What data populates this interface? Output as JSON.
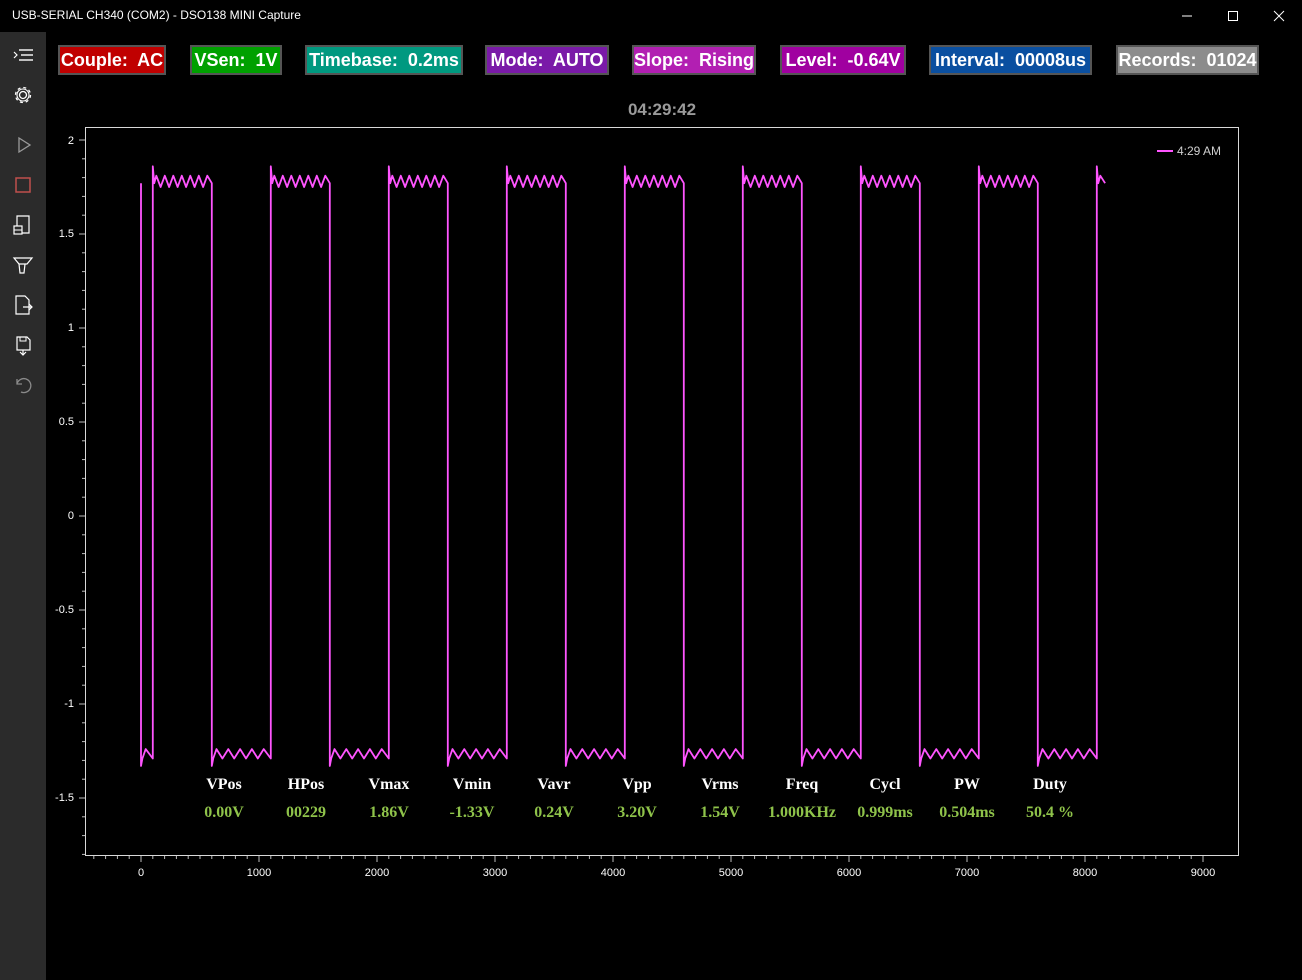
{
  "window": {
    "title": "USB-SERIAL CH340 (COM2) - DSO138 MINI Capture",
    "buttons": [
      "minimize-icon",
      "maximize-icon",
      "close-icon"
    ]
  },
  "sidebar": {
    "icons": [
      "menu-icon",
      "settings-icon",
      "play-icon",
      "stop-icon",
      "capture-icon",
      "trigger-icon",
      "export-icon",
      "save-icon",
      "undo-icon"
    ]
  },
  "badges": [
    {
      "name": "couple",
      "text": "Couple:  AC",
      "color": "#c00000"
    },
    {
      "name": "vsen",
      "text": "VSen:  1V",
      "color": "#00a000"
    },
    {
      "name": "timebase",
      "text": "Timebase:  0.2ms",
      "color": "#009980"
    },
    {
      "name": "mode",
      "text": "Mode:  AUTO",
      "color": "#7a1aa8"
    },
    {
      "name": "slope",
      "text": "Slope:  Rising",
      "color": "#b21fb2"
    },
    {
      "name": "level",
      "text": "Level:  -0.64V",
      "color": "#a000a0"
    },
    {
      "name": "interval",
      "text": "Interval:  00008us",
      "color": "#0a4fa0"
    },
    {
      "name": "records",
      "text": "Records:  01024",
      "color": "#8c8c8c"
    }
  ],
  "clock": "04:29:42",
  "legend": {
    "label": "4:29 AM",
    "color": "#ff55ff"
  },
  "stats": [
    {
      "label": "VPos",
      "value": "0.00V"
    },
    {
      "label": "HPos",
      "value": "00229"
    },
    {
      "label": "Vmax",
      "value": "1.86V"
    },
    {
      "label": "Vmin",
      "value": "-1.33V"
    },
    {
      "label": "Vavr",
      "value": "0.24V"
    },
    {
      "label": "Vpp",
      "value": "3.20V"
    },
    {
      "label": "Vrms",
      "value": "1.54V"
    },
    {
      "label": "Freq",
      "value": "1.000KHz"
    },
    {
      "label": "Cycl",
      "value": "0.999ms"
    },
    {
      "label": "PW",
      "value": "0.504ms"
    },
    {
      "label": "Duty",
      "value": "50.4 %"
    }
  ],
  "chart_data": {
    "type": "line",
    "title": "",
    "xlabel": "",
    "ylabel": "",
    "xlim": [
      -500,
      9000
    ],
    "ylim": [
      -1.75,
      2.05
    ],
    "x_ticks": [
      "0",
      "1000",
      "2000",
      "3000",
      "4000",
      "5000",
      "6000",
      "7000",
      "8000",
      "9000"
    ],
    "y_ticks": [
      "2",
      "1.5",
      "1",
      "0.5",
      "0",
      "-0.5",
      "-1",
      "-1.5"
    ],
    "series": [
      {
        "name": "4:29 AM",
        "description": "square wave, period ~1000 samples, ~50% duty",
        "high_level": 1.77,
        "low_level": -1.29,
        "overshoot": 1.86,
        "undershoot": -1.33,
        "rising_edges": [
          100,
          1100,
          2100,
          3100,
          4100,
          5100,
          6100,
          7100,
          8100
        ],
        "falling_edges": [
          0,
          600,
          1600,
          2600,
          3600,
          4600,
          5600,
          6600,
          7600
        ],
        "x_end": 8170
      }
    ]
  }
}
